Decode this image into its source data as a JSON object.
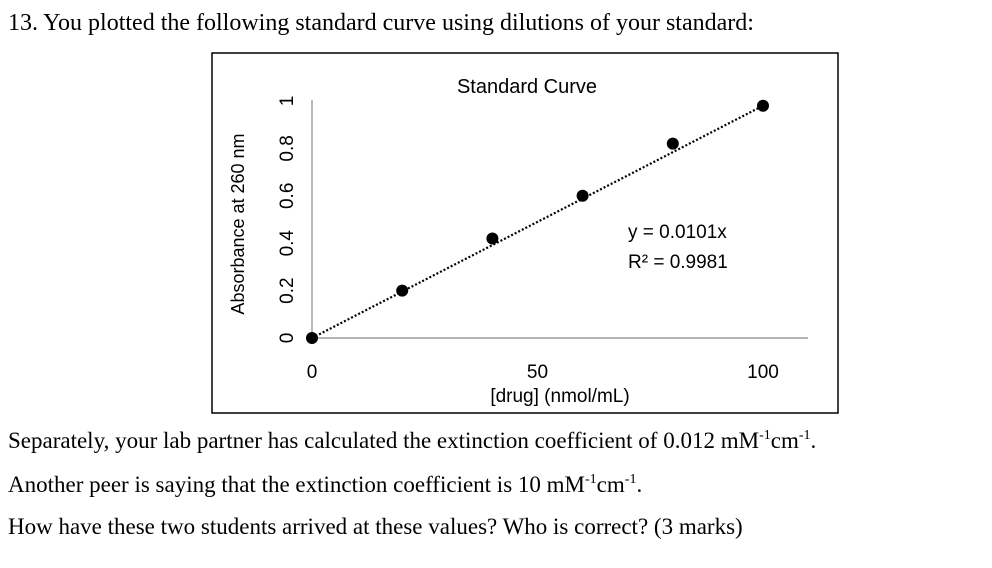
{
  "question": {
    "heading": "13. You plotted the following standard curve using dilutions of your standard:"
  },
  "text": {
    "line1": {
      "before": "Separately, your lab partner has calculated the extinction coefficient of 0.012 mM",
      "sup1": "-1",
      "mid": "cm",
      "sup2": "-1",
      "after": "."
    },
    "line2": {
      "before": "Another peer is saying that the extinction coefficient is 10 mM",
      "sup1": "-1",
      "mid": "cm",
      "sup2": "-1",
      "after": "."
    },
    "line3": "How have these two students arrived at these values? Who is correct? (3 marks)"
  },
  "chart_data": {
    "type": "scatter",
    "title": "Standard Curve",
    "xlabel": "[drug] (nmol/mL)",
    "ylabel": "Absorbance at 260 nm",
    "xlim": [
      0,
      100
    ],
    "ylim": [
      0,
      1
    ],
    "x_ticks": [
      "0",
      "50",
      "100"
    ],
    "y_ticks": [
      "0",
      "0.2",
      "0.4",
      "0.6",
      "0.8",
      "1"
    ],
    "points": [
      {
        "x": 0,
        "y": 0
      },
      {
        "x": 20,
        "y": 0.2
      },
      {
        "x": 40,
        "y": 0.42
      },
      {
        "x": 60,
        "y": 0.6
      },
      {
        "x": 80,
        "y": 0.82
      },
      {
        "x": 100,
        "y": 0.98
      }
    ],
    "trendline": {
      "type": "linear",
      "style": "dotted",
      "slope": 0.0101
    },
    "equation": "y = 0.0101x",
    "r_squared": "R² = 0.9981",
    "marker_color": "#000000",
    "grid": false
  }
}
